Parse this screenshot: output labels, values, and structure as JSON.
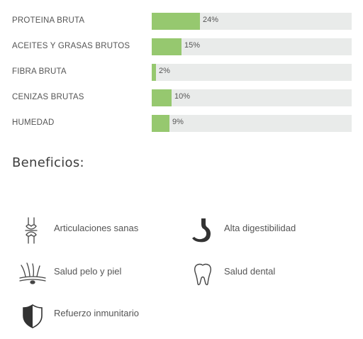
{
  "nutrition": {
    "rows": [
      {
        "label": "PROTEINA BRUTA",
        "value": 24,
        "display": "24%"
      },
      {
        "label": "ACEITES Y GRASAS BRUTOS",
        "value": 15,
        "display": "15%"
      },
      {
        "label": "FIBRA BRUTA",
        "value": 2,
        "display": "2%"
      },
      {
        "label": "CENIZAS BRUTAS",
        "value": 10,
        "display": "10%"
      },
      {
        "label": "HUMEDAD",
        "value": 9,
        "display": "9%"
      }
    ],
    "bar_color": "#96c86f",
    "track_color": "#e9ebea"
  },
  "benefits": {
    "title": "Beneficios:",
    "items": [
      {
        "label": "Articulaciones sanas",
        "icon": "joint-icon"
      },
      {
        "label": "Alta digestibilidad",
        "icon": "stomach-icon"
      },
      {
        "label": "Salud pelo y piel",
        "icon": "hair-skin-icon"
      },
      {
        "label": "Salud dental",
        "icon": "tooth-icon"
      },
      {
        "label": "Refuerzo inmunitario",
        "icon": "shield-icon"
      }
    ]
  }
}
